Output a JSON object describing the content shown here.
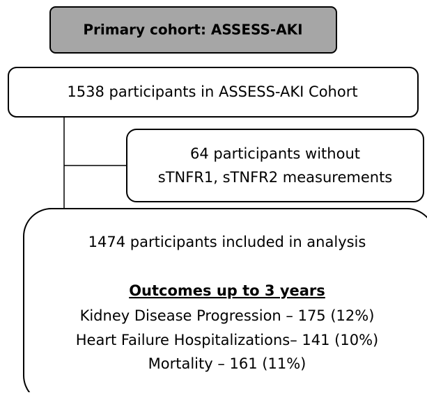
{
  "header": {
    "title": "Primary cohort: ASSESS-AKI"
  },
  "nodes": [
    {
      "label": "1538 participants in ASSESS-AKI Cohort"
    },
    {
      "lines": [
        "64 participants without",
        "sTNFR1, sTNFR2 measurements"
      ]
    },
    {
      "label": "1474 participants included in analysis",
      "heading": "Outcomes up to 3 years",
      "lines": [
        "Kidney Disease Progression – 175 (12%)",
        "Heart Failure Hospitalizations– 141 (10%)",
        "Mortality – 161 (11%)"
      ]
    }
  ]
}
